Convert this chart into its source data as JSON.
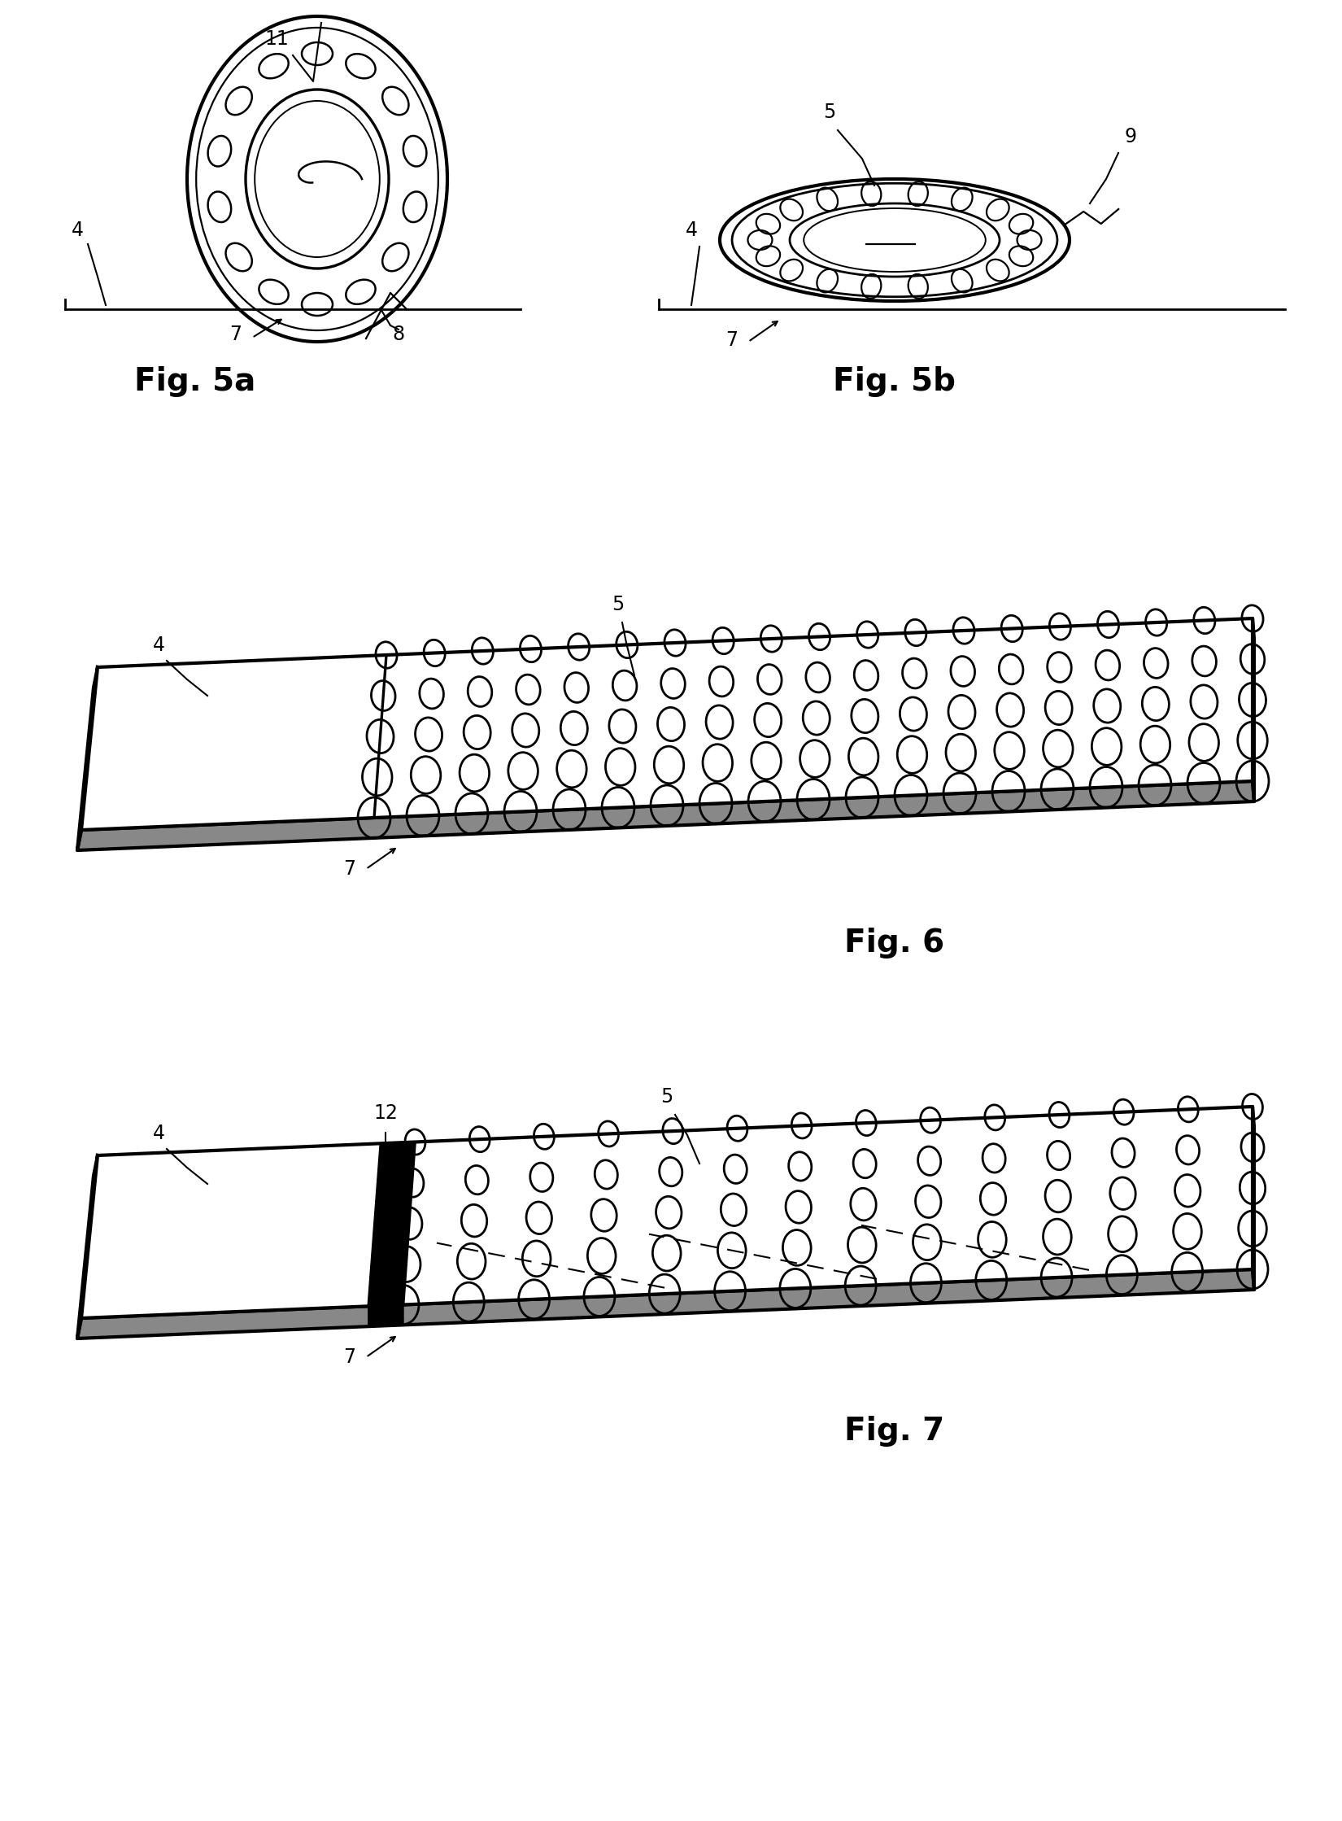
{
  "bg_color": "#ffffff",
  "line_color": "#000000",
  "fig_width": 16.5,
  "fig_height": 22.38,
  "fig5a_label": "Fig. 5a",
  "fig5b_label": "Fig. 5b",
  "fig6_label": "Fig. 6",
  "fig7_label": "Fig. 7",
  "label_fontsize": 28,
  "ref_fontsize": 17,
  "label_fontstyle": "bold"
}
